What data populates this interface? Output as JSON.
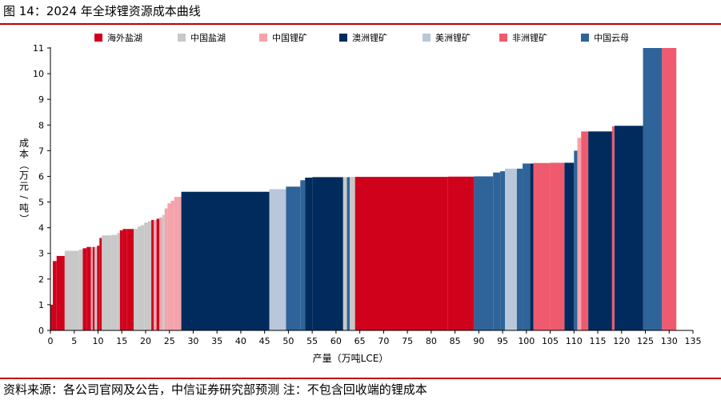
{
  "figure": {
    "title": "图 14：2024 年全球锂资源成本曲线",
    "source": "资料来源：各公司官网及公告，中信证券研究部预测 注：不包含回收端的锂成本"
  },
  "chart_data": {
    "type": "bar",
    "subtype": "cost-curve (variable-width bars)",
    "xlabel": "产量（万吨LCE）",
    "ylabel": "成本（万元/吨）",
    "xlim": [
      0,
      135
    ],
    "ylim": [
      0,
      11
    ],
    "x_ticks": [
      0,
      5,
      10,
      15,
      20,
      25,
      30,
      35,
      40,
      45,
      50,
      55,
      60,
      65,
      70,
      75,
      80,
      85,
      90,
      95,
      100,
      105,
      110,
      115,
      120,
      125,
      130,
      135
    ],
    "y_ticks": [
      0,
      1,
      2,
      3,
      4,
      5,
      6,
      7,
      8,
      9,
      10,
      11
    ],
    "grid": false,
    "legend_position": "top",
    "legend": [
      {
        "name": "海外盐湖",
        "color": "#d0021b"
      },
      {
        "name": "中国盐湖",
        "color": "#c8c8c8"
      },
      {
        "name": "中国锂矿",
        "color": "#f4a3ab"
      },
      {
        "name": "澳洲锂矿",
        "color": "#002b5c"
      },
      {
        "name": "美洲锂矿",
        "color": "#b8c7d9"
      },
      {
        "name": "非洲锂矿",
        "color": "#f05a6e"
      },
      {
        "name": "中国云母",
        "color": "#2e6499"
      }
    ],
    "bars": [
      {
        "type": "海外盐湖",
        "x0": 0,
        "x1": 0.5,
        "y": 1.0
      },
      {
        "type": "海外盐湖",
        "x0": 0.5,
        "x1": 1.3,
        "y": 2.7
      },
      {
        "type": "海外盐湖",
        "x0": 1.3,
        "x1": 3.0,
        "y": 2.9
      },
      {
        "type": "中国盐湖",
        "x0": 3.0,
        "x1": 6.0,
        "y": 3.1
      },
      {
        "type": "中国盐湖",
        "x0": 6.0,
        "x1": 6.8,
        "y": 3.15
      },
      {
        "type": "海外盐湖",
        "x0": 6.8,
        "x1": 7.6,
        "y": 3.2
      },
      {
        "type": "海外盐湖",
        "x0": 7.6,
        "x1": 8.5,
        "y": 3.25
      },
      {
        "type": "中国锂矿",
        "x0": 8.5,
        "x1": 8.9,
        "y": 3.25
      },
      {
        "type": "海外盐湖",
        "x0": 8.9,
        "x1": 9.3,
        "y": 3.25
      },
      {
        "type": "中国盐湖",
        "x0": 9.3,
        "x1": 9.8,
        "y": 3.25
      },
      {
        "type": "海外盐湖",
        "x0": 9.8,
        "x1": 10.3,
        "y": 3.3
      },
      {
        "type": "海外盐湖",
        "x0": 10.3,
        "x1": 10.8,
        "y": 3.6
      },
      {
        "type": "中国盐湖",
        "x0": 10.8,
        "x1": 12.8,
        "y": 3.7
      },
      {
        "type": "中国盐湖",
        "x0": 12.8,
        "x1": 14.0,
        "y": 3.72
      },
      {
        "type": "中国盐湖",
        "x0": 14.0,
        "x1": 14.6,
        "y": 3.8
      },
      {
        "type": "海外盐湖",
        "x0": 14.6,
        "x1": 15.2,
        "y": 3.9
      },
      {
        "type": "海外盐湖",
        "x0": 15.2,
        "x1": 16.0,
        "y": 3.95
      },
      {
        "type": "海外盐湖",
        "x0": 16.0,
        "x1": 17.5,
        "y": 3.95
      },
      {
        "type": "中国盐湖",
        "x0": 17.5,
        "x1": 18.3,
        "y": 3.95
      },
      {
        "type": "中国盐湖",
        "x0": 18.3,
        "x1": 19.0,
        "y": 4.05
      },
      {
        "type": "中国盐湖",
        "x0": 19.0,
        "x1": 19.7,
        "y": 4.1
      },
      {
        "type": "中国盐湖",
        "x0": 19.7,
        "x1": 20.5,
        "y": 4.2
      },
      {
        "type": "中国盐湖",
        "x0": 20.5,
        "x1": 21.2,
        "y": 4.25
      },
      {
        "type": "海外盐湖",
        "x0": 21.2,
        "x1": 21.7,
        "y": 4.3
      },
      {
        "type": "中国锂矿",
        "x0": 21.7,
        "x1": 22.3,
        "y": 4.3
      },
      {
        "type": "海外盐湖",
        "x0": 22.3,
        "x1": 22.9,
        "y": 4.35
      },
      {
        "type": "中国锂矿",
        "x0": 22.9,
        "x1": 23.5,
        "y": 4.4
      },
      {
        "type": "中国盐湖",
        "x0": 23.5,
        "x1": 24.0,
        "y": 4.5
      },
      {
        "type": "中国锂矿",
        "x0": 24.0,
        "x1": 24.6,
        "y": 4.75
      },
      {
        "type": "中国锂矿",
        "x0": 24.6,
        "x1": 25.3,
        "y": 4.95
      },
      {
        "type": "中国锂矿",
        "x0": 25.3,
        "x1": 26.0,
        "y": 5.05
      },
      {
        "type": "中国锂矿",
        "x0": 26.0,
        "x1": 27.5,
        "y": 5.2
      },
      {
        "type": "澳洲锂矿",
        "x0": 27.5,
        "x1": 46.0,
        "y": 5.4
      },
      {
        "type": "美洲锂矿",
        "x0": 46.0,
        "x1": 49.5,
        "y": 5.5
      },
      {
        "type": "中国云母",
        "x0": 49.5,
        "x1": 52.5,
        "y": 5.6
      },
      {
        "type": "中国云母",
        "x0": 52.5,
        "x1": 53.5,
        "y": 5.85
      },
      {
        "type": "澳洲锂矿",
        "x0": 53.5,
        "x1": 55.0,
        "y": 5.95
      },
      {
        "type": "澳洲锂矿",
        "x0": 55.0,
        "x1": 61.5,
        "y": 5.97
      },
      {
        "type": "中国盐湖",
        "x0": 61.5,
        "x1": 62.3,
        "y": 5.97
      },
      {
        "type": "中国云母",
        "x0": 62.3,
        "x1": 62.9,
        "y": 5.97
      },
      {
        "type": "中国盐湖",
        "x0": 62.9,
        "x1": 64.0,
        "y": 5.98
      },
      {
        "type": "海外盐湖",
        "x0": 64.0,
        "x1": 83.5,
        "y": 5.98
      },
      {
        "type": "海外盐湖",
        "x0": 83.5,
        "x1": 89.0,
        "y": 5.99
      },
      {
        "type": "中国云母",
        "x0": 89.0,
        "x1": 93.0,
        "y": 6.0
      },
      {
        "type": "中国云母",
        "x0": 93.0,
        "x1": 94.5,
        "y": 6.15
      },
      {
        "type": "中国云母",
        "x0": 94.5,
        "x1": 95.5,
        "y": 6.2
      },
      {
        "type": "美洲锂矿",
        "x0": 95.5,
        "x1": 98.0,
        "y": 6.3
      },
      {
        "type": "中国云母",
        "x0": 98.0,
        "x1": 99.2,
        "y": 6.3
      },
      {
        "type": "中国云母",
        "x0": 99.2,
        "x1": 100.8,
        "y": 6.5
      },
      {
        "type": "澳洲锂矿",
        "x0": 100.8,
        "x1": 101.5,
        "y": 6.5
      },
      {
        "type": "非洲锂矿",
        "x0": 101.5,
        "x1": 105.0,
        "y": 6.52
      },
      {
        "type": "非洲锂矿",
        "x0": 105.0,
        "x1": 108.0,
        "y": 6.53
      },
      {
        "type": "澳洲锂矿",
        "x0": 108.0,
        "x1": 110.0,
        "y": 6.53
      },
      {
        "type": "中国云母",
        "x0": 110.0,
        "x1": 110.7,
        "y": 7.0
      },
      {
        "type": "中国锂矿",
        "x0": 110.7,
        "x1": 111.5,
        "y": 7.5
      },
      {
        "type": "非洲锂矿",
        "x0": 111.5,
        "x1": 113.0,
        "y": 7.75
      },
      {
        "type": "澳洲锂矿",
        "x0": 113.0,
        "x1": 118.0,
        "y": 7.75
      },
      {
        "type": "非洲锂矿",
        "x0": 118.0,
        "x1": 118.5,
        "y": 7.95
      },
      {
        "type": "澳洲锂矿",
        "x0": 118.5,
        "x1": 124.5,
        "y": 7.97
      },
      {
        "type": "中国云母",
        "x0": 124.5,
        "x1": 128.5,
        "y": 11.0
      },
      {
        "type": "非洲锂矿",
        "x0": 128.5,
        "x1": 131.5,
        "y": 11.0
      }
    ]
  }
}
